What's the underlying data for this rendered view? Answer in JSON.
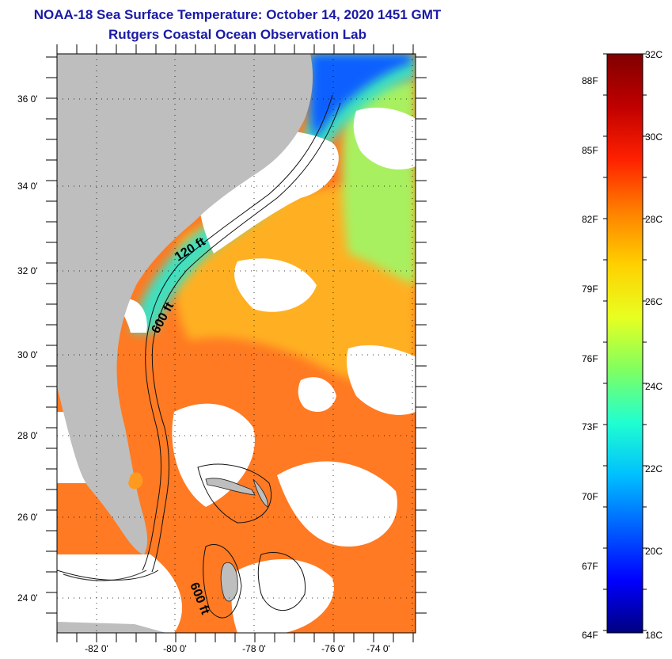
{
  "title": {
    "line1": "NOAA-18 Sea Surface Temperature:  October 14, 2020 1451 GMT",
    "line2": "Rutgers Coastal Ocean Observation Lab"
  },
  "axes": {
    "lat_labels": [
      "36 0'",
      "34 0'",
      "32 0'",
      "30 0'",
      "28 0'",
      "26 0'",
      "24 0'"
    ],
    "lon_labels": [
      "-82 0'",
      "-80 0'",
      "-78 0'",
      "-76 0'",
      "-74 0'"
    ]
  },
  "contours": {
    "label_120": "120 ft",
    "label_600_a": "600 ft",
    "label_600_b": "600 ft"
  },
  "colorbar": {
    "fahrenheit": [
      "88F",
      "85F",
      "82F",
      "79F",
      "76F",
      "73F",
      "70F",
      "67F",
      "64F"
    ],
    "celsius": [
      "32C",
      "30C",
      "28C",
      "26C",
      "24C",
      "22C",
      "20C",
      "18C"
    ],
    "stops": [
      "#000080",
      "#0000ff",
      "#0060ff",
      "#00c0ff",
      "#20ffd0",
      "#80ff60",
      "#e8ff20",
      "#ffd000",
      "#ff8000",
      "#ff2000",
      "#c00000",
      "#800000"
    ]
  },
  "colors": {
    "land": "#bebebe",
    "cloud": "#ffffff",
    "title": "#1a1aa6",
    "warm": "#ff6a1a",
    "mid": "#ffb020",
    "cool": "#90f060",
    "cold": "#1060ff"
  }
}
